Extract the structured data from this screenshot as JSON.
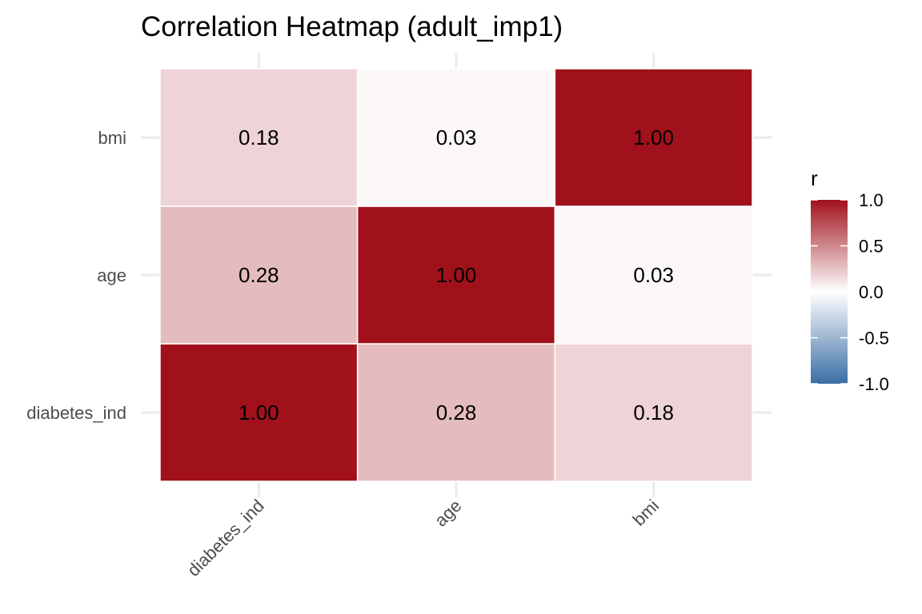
{
  "chart_data": {
    "type": "heatmap",
    "title": "Correlation Heatmap (adult_imp1)",
    "x_categories": [
      "diabetes_ind",
      "age",
      "bmi"
    ],
    "y_categories": [
      "diabetes_ind",
      "age",
      "bmi"
    ],
    "matrix": [
      [
        1.0,
        0.28,
        0.18
      ],
      [
        0.28,
        1.0,
        0.03
      ],
      [
        0.18,
        0.03,
        1.0
      ]
    ],
    "cell_labels": [
      [
        "1.00",
        "0.28",
        "0.18"
      ],
      [
        "0.28",
        "1.00",
        "0.03"
      ],
      [
        "0.18",
        "0.03",
        "1.00"
      ]
    ],
    "color_scale": {
      "low": "#3a6ea5",
      "mid": "#ffffff",
      "high": "#a0111b",
      "limits": [
        -1.0,
        1.0
      ]
    },
    "legend": {
      "title": "r",
      "ticks": [
        "1.0",
        "0.5",
        "0.0",
        "-0.5",
        "-1.0"
      ],
      "tick_values": [
        1.0,
        0.5,
        0.0,
        -0.5,
        -1.0
      ],
      "placement": "right"
    },
    "grid": true
  }
}
